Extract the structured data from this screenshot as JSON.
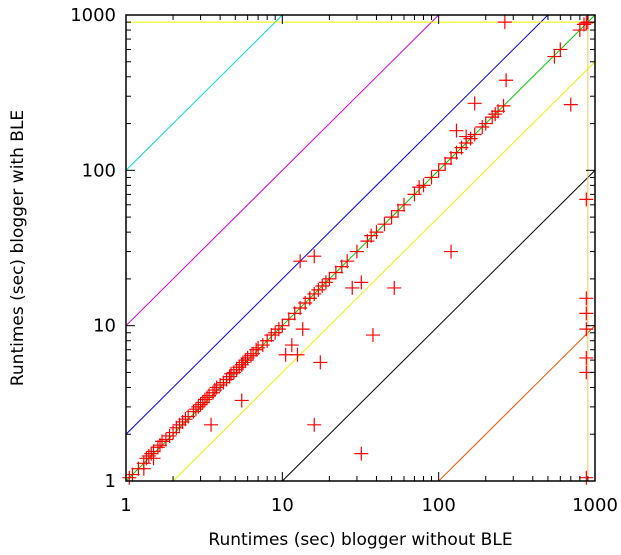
{
  "chart_data": {
    "type": "scatter",
    "xlabel": "Runtimes (sec) blogger without BLE",
    "ylabel": "Runtimes (sec) blogger with BLE",
    "xscale": "log",
    "yscale": "log",
    "xlim": [
      1,
      1000
    ],
    "ylim": [
      1,
      1000
    ],
    "xticks": [
      1,
      10,
      100,
      1000
    ],
    "yticks": [
      1,
      10,
      100,
      1000
    ],
    "xtick_labels": [
      "1",
      "10",
      "100",
      "1000"
    ],
    "ytick_labels": [
      "1",
      "10",
      "100",
      "1000"
    ],
    "grid": false,
    "marker": "plus",
    "marker_color": "#ff0000",
    "reference_lines": [
      {
        "kind": "diagonal",
        "factor": 100,
        "color": "#00dddd"
      },
      {
        "kind": "diagonal",
        "factor": 10,
        "color": "#dd00dd"
      },
      {
        "kind": "diagonal",
        "factor": 2,
        "color": "#0000ff"
      },
      {
        "kind": "diagonal",
        "factor": 1,
        "color": "#00cc00"
      },
      {
        "kind": "diagonal",
        "factor": 0.5,
        "color": "#f0f000"
      },
      {
        "kind": "diagonal",
        "factor": 0.1,
        "color": "#000000"
      },
      {
        "kind": "diagonal",
        "factor": 0.01,
        "color": "#ff5500"
      },
      {
        "kind": "vertical",
        "value": 900,
        "color": "#f5c060"
      },
      {
        "kind": "horizontal",
        "value": 900,
        "color": "#f0f000"
      }
    ],
    "points": [
      [
        1.05,
        1.05
      ],
      [
        1.1,
        1.1
      ],
      [
        1.2,
        1.2
      ],
      [
        1.3,
        1.3
      ],
      [
        1.35,
        1.4
      ],
      [
        1.4,
        1.45
      ],
      [
        1.45,
        1.5
      ],
      [
        1.5,
        1.55
      ],
      [
        1.6,
        1.65
      ],
      [
        1.65,
        1.7
      ],
      [
        1.7,
        1.8
      ],
      [
        1.8,
        1.85
      ],
      [
        1.9,
        1.95
      ],
      [
        2.0,
        2.05
      ],
      [
        2.1,
        2.2
      ],
      [
        2.2,
        2.3
      ],
      [
        2.3,
        2.4
      ],
      [
        2.4,
        2.5
      ],
      [
        2.5,
        2.6
      ],
      [
        2.7,
        2.8
      ],
      [
        2.8,
        2.9
      ],
      [
        2.9,
        3.0
      ],
      [
        3.0,
        3.1
      ],
      [
        3.1,
        3.2
      ],
      [
        3.2,
        3.35
      ],
      [
        3.3,
        3.45
      ],
      [
        3.4,
        3.55
      ],
      [
        3.6,
        3.7
      ],
      [
        3.7,
        3.85
      ],
      [
        3.8,
        4.0
      ],
      [
        4.0,
        4.15
      ],
      [
        4.2,
        4.3
      ],
      [
        4.4,
        4.5
      ],
      [
        4.6,
        4.7
      ],
      [
        4.7,
        4.9
      ],
      [
        4.9,
        5.0
      ],
      [
        5.1,
        5.2
      ],
      [
        5.3,
        5.4
      ],
      [
        5.5,
        5.6
      ],
      [
        5.6,
        5.8
      ],
      [
        5.8,
        6.0
      ],
      [
        6.0,
        6.2
      ],
      [
        6.3,
        6.4
      ],
      [
        6.5,
        6.6
      ],
      [
        6.8,
        7.0
      ],
      [
        7.0,
        7.2
      ],
      [
        7.5,
        7.5
      ],
      [
        8.0,
        8.0
      ],
      [
        8.5,
        8.7
      ],
      [
        9.0,
        9.0
      ],
      [
        9.5,
        9.5
      ],
      [
        10.0,
        10.0
      ],
      [
        11.0,
        11.0
      ],
      [
        12.0,
        12.0
      ],
      [
        13.0,
        13.0
      ],
      [
        14.0,
        14.0
      ],
      [
        15.0,
        15.0
      ],
      [
        16.0,
        16.0
      ],
      [
        17.0,
        17.0
      ],
      [
        18.0,
        18.0
      ],
      [
        19.0,
        19.0
      ],
      [
        20.0,
        20.0
      ],
      [
        22.0,
        22.0
      ],
      [
        24.0,
        24.0
      ],
      [
        26.0,
        26.0
      ],
      [
        30.0,
        30.0
      ],
      [
        35.0,
        35.0
      ],
      [
        37.0,
        38.0
      ],
      [
        40.0,
        40.0
      ],
      [
        45.0,
        45.0
      ],
      [
        50.0,
        50.0
      ],
      [
        55.0,
        55.0
      ],
      [
        60.0,
        60.0
      ],
      [
        70.0,
        70.0
      ],
      [
        75.0,
        78.0
      ],
      [
        80.0,
        80.0
      ],
      [
        90.0,
        90.0
      ],
      [
        100.0,
        100.0
      ],
      [
        110.0,
        110.0
      ],
      [
        120.0,
        120.0
      ],
      [
        130.0,
        130.0
      ],
      [
        140.0,
        140.0
      ],
      [
        150.0,
        150.0
      ],
      [
        160.0,
        160.0
      ],
      [
        170.0,
        170.0
      ],
      [
        190.0,
        190.0
      ],
      [
        200.0,
        200.0
      ],
      [
        220.0,
        220.0
      ],
      [
        240.0,
        240.0
      ],
      [
        260.0,
        260.0
      ],
      [
        550.0,
        540.0
      ],
      [
        600.0,
        600.0
      ],
      [
        800.0,
        800.0
      ],
      [
        850.0,
        870.0
      ],
      [
        900.0,
        900.0
      ],
      [
        1.3,
        1.2
      ],
      [
        1.5,
        1.4
      ],
      [
        3.5,
        2.3
      ],
      [
        5.5,
        3.3
      ],
      [
        10.5,
        6.5
      ],
      [
        11.5,
        7.5
      ],
      [
        12.5,
        6.5
      ],
      [
        13.5,
        9.5
      ],
      [
        16.0,
        2.3
      ],
      [
        17.5,
        5.8
      ],
      [
        16.0,
        28.0
      ],
      [
        13.0,
        26.0
      ],
      [
        15.0,
        15.0
      ],
      [
        28.0,
        17.5
      ],
      [
        32.0,
        19.0
      ],
      [
        32.0,
        1.5
      ],
      [
        38.0,
        8.7
      ],
      [
        52.0,
        17.5
      ],
      [
        120.0,
        30.0
      ],
      [
        170.0,
        270.0
      ],
      [
        130.0,
        180.0
      ],
      [
        150.0,
        165.0
      ],
      [
        230.0,
        230.0
      ],
      [
        270.0,
        380.0
      ],
      [
        265.0,
        900.0
      ],
      [
        700.0,
        265.0
      ],
      [
        880.0,
        65.0
      ],
      [
        880.0,
        15.0
      ],
      [
        880.0,
        12.0
      ],
      [
        880.0,
        9.5
      ],
      [
        880.0,
        6.2
      ],
      [
        880.0,
        5.0
      ],
      [
        880.0,
        1.05
      ],
      [
        880.0,
        890.0
      ]
    ]
  }
}
